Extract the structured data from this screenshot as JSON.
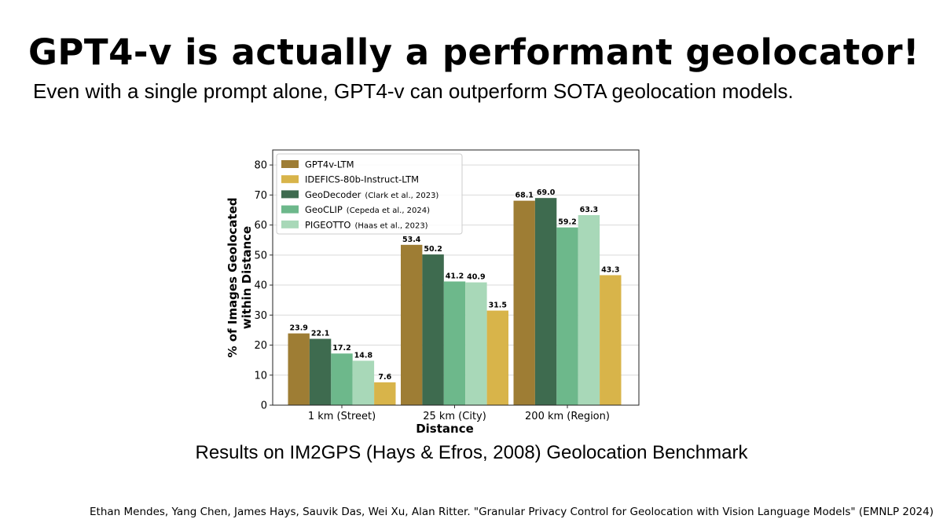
{
  "slide": {
    "title": "GPT4-v is actually a performant geolocator!",
    "subtitle": "Even with a single prompt alone, GPT4-v can outperform SOTA geolocation models.",
    "caption": "Results on IM2GPS (Hays & Efros, 2008) Geolocation Benchmark",
    "citation": "Ethan Mendes, Yang Chen, James Hays, Sauvik Das, Wei Xu, Alan Ritter. \"Granular Privacy Control for Geolocation with Vision Language Models\" (EMNLP 2024)"
  },
  "chart_data": {
    "type": "bar",
    "title": "",
    "xlabel": "Distance",
    "ylabel": "% of Images Geolocated within Distance",
    "ylabel_lines": [
      "% of Images Geolocated",
      "within Distance"
    ],
    "ylim": [
      0,
      85
    ],
    "yticks": [
      0,
      10,
      20,
      30,
      40,
      50,
      60,
      70,
      80
    ],
    "grid": true,
    "legend_position": "top-left",
    "categories": [
      "1 km (Street)",
      "25 km (City)",
      "200 km (Region)"
    ],
    "series": [
      {
        "name": "GPT4v-LTM",
        "citation": "",
        "color": "#9e7d34",
        "values": [
          23.9,
          53.4,
          68.1
        ],
        "labels": [
          "23.9",
          "53.4",
          "68.1"
        ]
      },
      {
        "name": "GeoDecoder",
        "citation": "(Clark et al., 2023)",
        "color": "#3e6b4f",
        "values": [
          22.1,
          50.2,
          69.0
        ],
        "labels": [
          "22.1",
          "50.2",
          "69.0"
        ]
      },
      {
        "name": "GeoCLIP",
        "citation": "(Cepeda et al., 2024)",
        "color": "#6db88b",
        "values": [
          17.2,
          41.2,
          59.2
        ],
        "labels": [
          "17.2",
          "41.2",
          "59.2"
        ]
      },
      {
        "name": "PIGEOTTO",
        "citation": "(Haas et al., 2023)",
        "color": "#a8d8b8",
        "values": [
          14.8,
          40.9,
          63.3
        ],
        "labels": [
          "14.8",
          "40.9",
          "63.3"
        ]
      },
      {
        "name": "IDEFICS-80b-Instruct-LTM",
        "citation": "",
        "color": "#d8b44a",
        "values": [
          7.6,
          31.5,
          43.3
        ],
        "labels": [
          "7.6",
          "31.5",
          "43.3"
        ]
      }
    ],
    "legend_order": [
      0,
      4,
      1,
      2,
      3
    ]
  }
}
